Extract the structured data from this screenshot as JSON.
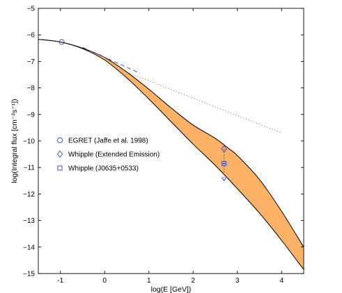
{
  "chart_data": {
    "type": "line",
    "xlabel": "log(E [GeV])",
    "ylabel": "log(Integral flux [cm⁻²s⁻¹])",
    "xlim": [
      -1.5,
      4.5
    ],
    "ylim": [
      -15,
      -5
    ],
    "xticks": [
      -1,
      0,
      1,
      2,
      3,
      4
    ],
    "yticks": [
      -5,
      -6,
      -7,
      -8,
      -9,
      -10,
      -11,
      -12,
      -13,
      -14,
      -15
    ],
    "grid": false,
    "legend_position": "left",
    "band": {
      "color": "#fcb266",
      "upper": [
        [
          -1.5,
          -6.17
        ],
        [
          -1.0,
          -6.27
        ],
        [
          -0.5,
          -6.5
        ],
        [
          0.0,
          -6.85
        ],
        [
          0.5,
          -7.4
        ],
        [
          1.0,
          -8.05
        ],
        [
          1.5,
          -8.75
        ],
        [
          2.0,
          -9.4
        ],
        [
          2.5,
          -9.9
        ],
        [
          2.8,
          -10.28
        ],
        [
          3.0,
          -10.55
        ],
        [
          3.5,
          -11.45
        ],
        [
          4.0,
          -12.65
        ],
        [
          4.5,
          -14.0
        ]
      ],
      "lower": [
        [
          -1.5,
          -6.17
        ],
        [
          -1.0,
          -6.27
        ],
        [
          -0.5,
          -6.52
        ],
        [
          0.0,
          -6.95
        ],
        [
          0.5,
          -7.62
        ],
        [
          1.0,
          -8.42
        ],
        [
          1.5,
          -9.27
        ],
        [
          2.0,
          -10.12
        ],
        [
          2.5,
          -10.92
        ],
        [
          3.0,
          -11.8
        ],
        [
          3.5,
          -12.72
        ],
        [
          4.0,
          -13.75
        ],
        [
          4.5,
          -14.85
        ]
      ]
    },
    "dashed_line": {
      "color": "#3355cc",
      "points": [
        [
          -0.5,
          -6.47
        ],
        [
          0.8,
          -7.45
        ]
      ]
    },
    "dotted_line": {
      "color": "#555555",
      "points": [
        [
          0.5,
          -7.4
        ],
        [
          4.0,
          -9.7
        ]
      ]
    },
    "series": [
      {
        "name": "EGRET (Jaffe et al. 1998)",
        "marker": "circle",
        "points": [
          [
            -0.97,
            -6.27
          ]
        ]
      },
      {
        "name": "Whipple (Extended Emission)",
        "marker": "diamond",
        "points": [
          [
            2.7,
            -10.3
          ]
        ]
      },
      {
        "name": "Whipple (J0635+0533)",
        "marker": "square",
        "points": [
          [
            2.7,
            -10.85
          ]
        ],
        "upper_limit_to": -11.5
      }
    ],
    "marker_color": "#3355cc"
  }
}
